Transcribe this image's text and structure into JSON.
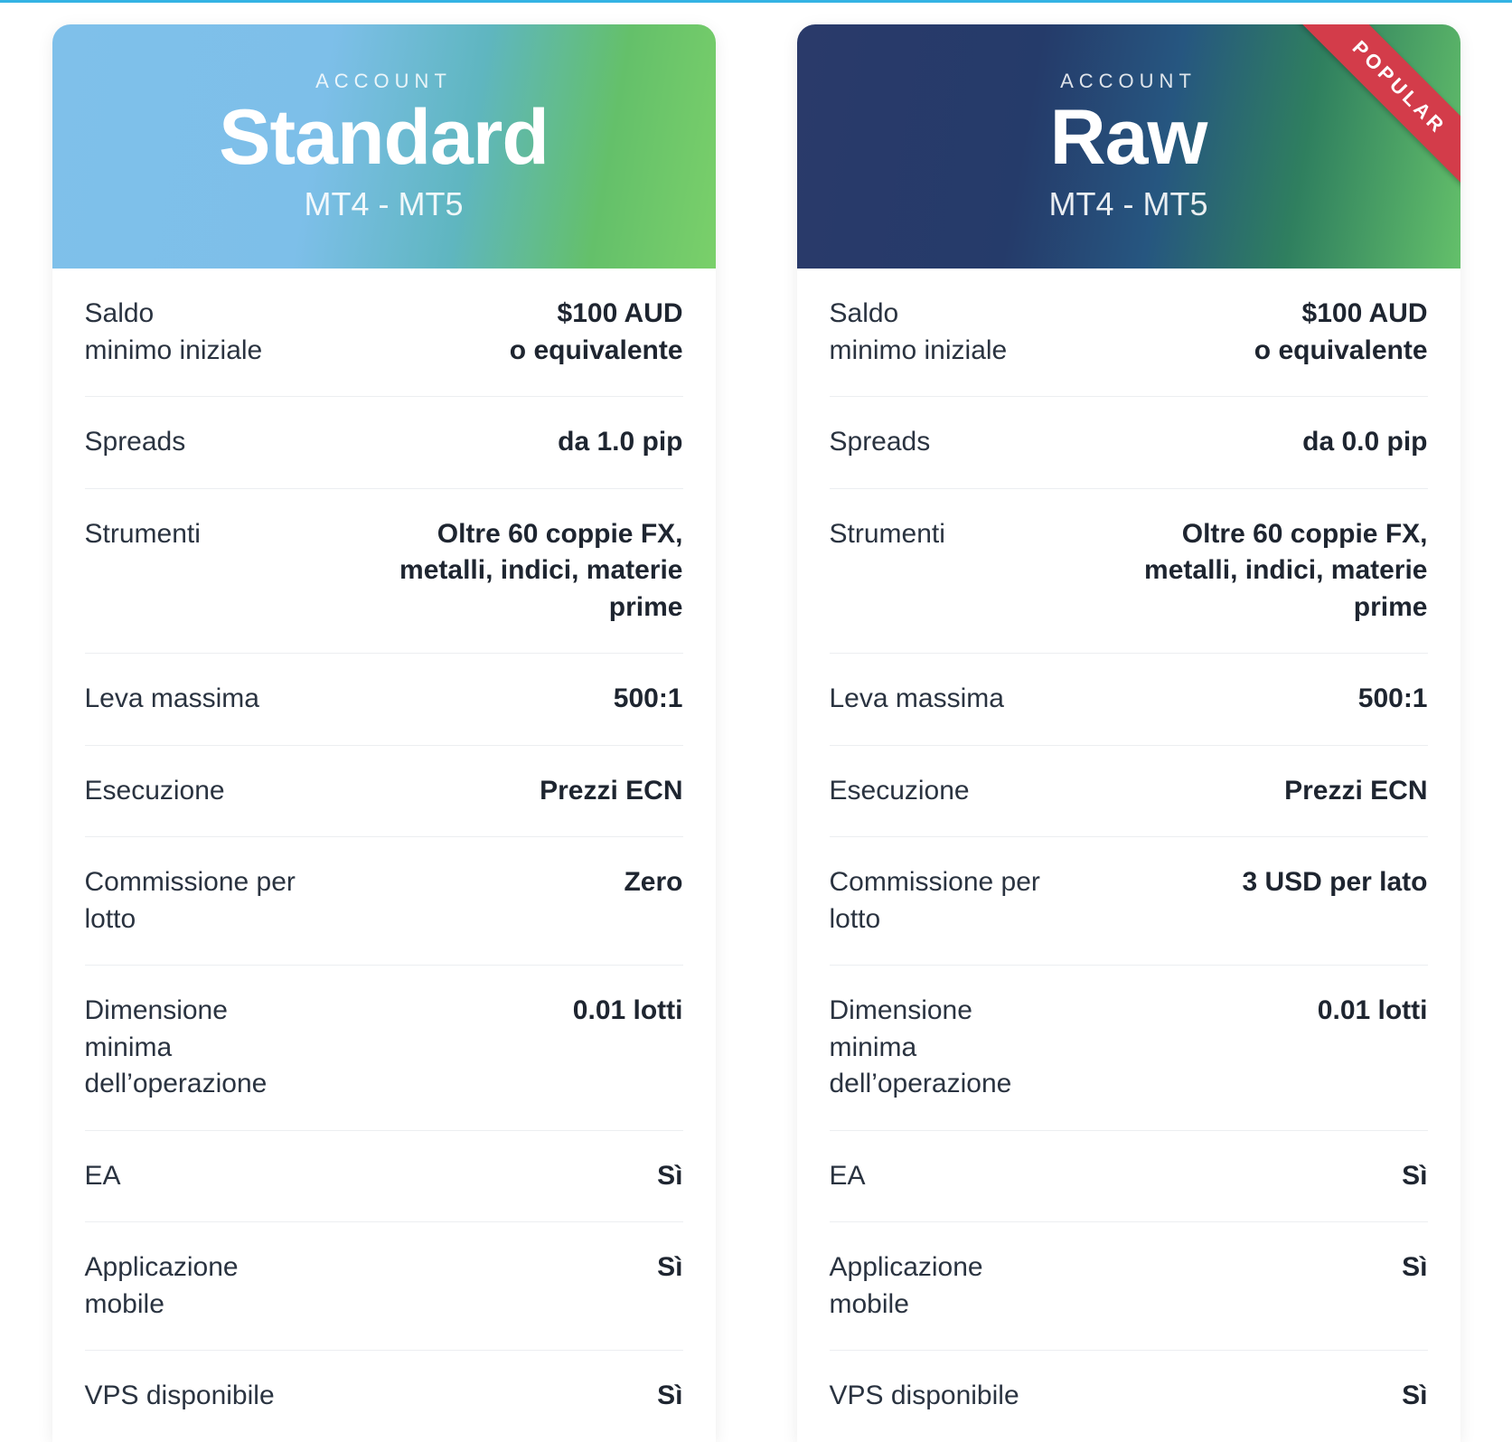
{
  "colors": {
    "pageBackground": "#ffffff",
    "topBorder": "#34b3e4",
    "rowDivider": "#eceef1",
    "labelText": "#2a3340",
    "valueText": "#1e2530",
    "ribbonBg": "#d33c4a",
    "ribbonText": "#ffffff",
    "headerText": "#ffffff"
  },
  "typography": {
    "fontFamily": "-apple-system, Helvetica Neue, Arial, sans-serif",
    "eyebrowSize": 22,
    "eyebrowLetterSpacing": 6,
    "titleSize": 86,
    "titleWeight": 800,
    "subSize": 36,
    "rowFontSize": 30,
    "labelWeight": 400,
    "valueWeight": 700,
    "ribbonFontSize": 22,
    "ribbonLetterSpacing": 4
  },
  "layout": {
    "cardWidth": 734,
    "cardGap": 90,
    "headerHeight": 270,
    "bodyPaddingX": 36,
    "rowPaddingY": 30,
    "borderRadius": "20px 20px 0 0"
  },
  "cards": [
    {
      "variant": "light",
      "gradient": [
        "#7fc0ea",
        "#7dbfe9",
        "#5fb6c0",
        "#64c06a",
        "#7ad06a"
      ],
      "eyebrow": "ACCOUNT",
      "title": "Standard",
      "subtitle": "MT4 - MT5",
      "ribbon": null,
      "rows": [
        {
          "label": "Saldo\nminimo iniziale",
          "value": "$100 AUD\no equivalente"
        },
        {
          "label": "Spreads",
          "value": "da 1.0 pip"
        },
        {
          "label": "Strumenti",
          "value": "Oltre 60 coppie FX, metalli, indici, materie prime"
        },
        {
          "label": "Leva massima",
          "value": "500:1"
        },
        {
          "label": "Esecuzione",
          "value": "Prezzi ECN"
        },
        {
          "label": "Commissione per lotto",
          "value": "Zero"
        },
        {
          "label": "Dimensione minima dell’operazione",
          "value": "0.01 lotti"
        },
        {
          "label": "EA",
          "value": "Sì"
        },
        {
          "label": "Applicazione mobile",
          "value": "Sì"
        },
        {
          "label": "VPS disponibile",
          "value": "Sì"
        }
      ]
    },
    {
      "variant": "dark",
      "gradient": [
        "#2a3a6a",
        "#253b6a",
        "#265680",
        "#2f7f5f",
        "#64c06a"
      ],
      "eyebrow": "ACCOUNT",
      "title": "Raw",
      "subtitle": "MT4 - MT5",
      "ribbon": "POPULAR",
      "rows": [
        {
          "label": "Saldo\nminimo iniziale",
          "value": "$100 AUD\no equivalente"
        },
        {
          "label": "Spreads",
          "value": "da 0.0 pip"
        },
        {
          "label": "Strumenti",
          "value": "Oltre 60 coppie FX, metalli, indici, materie prime"
        },
        {
          "label": "Leva massima",
          "value": "500:1"
        },
        {
          "label": "Esecuzione",
          "value": "Prezzi ECN"
        },
        {
          "label": "Commissione per lotto",
          "value": "3 USD per lato"
        },
        {
          "label": "Dimensione minima dell’operazione",
          "value": "0.01 lotti"
        },
        {
          "label": "EA",
          "value": "Sì"
        },
        {
          "label": "Applicazione mobile",
          "value": "Sì"
        },
        {
          "label": "VPS disponibile",
          "value": "Sì"
        }
      ]
    }
  ]
}
